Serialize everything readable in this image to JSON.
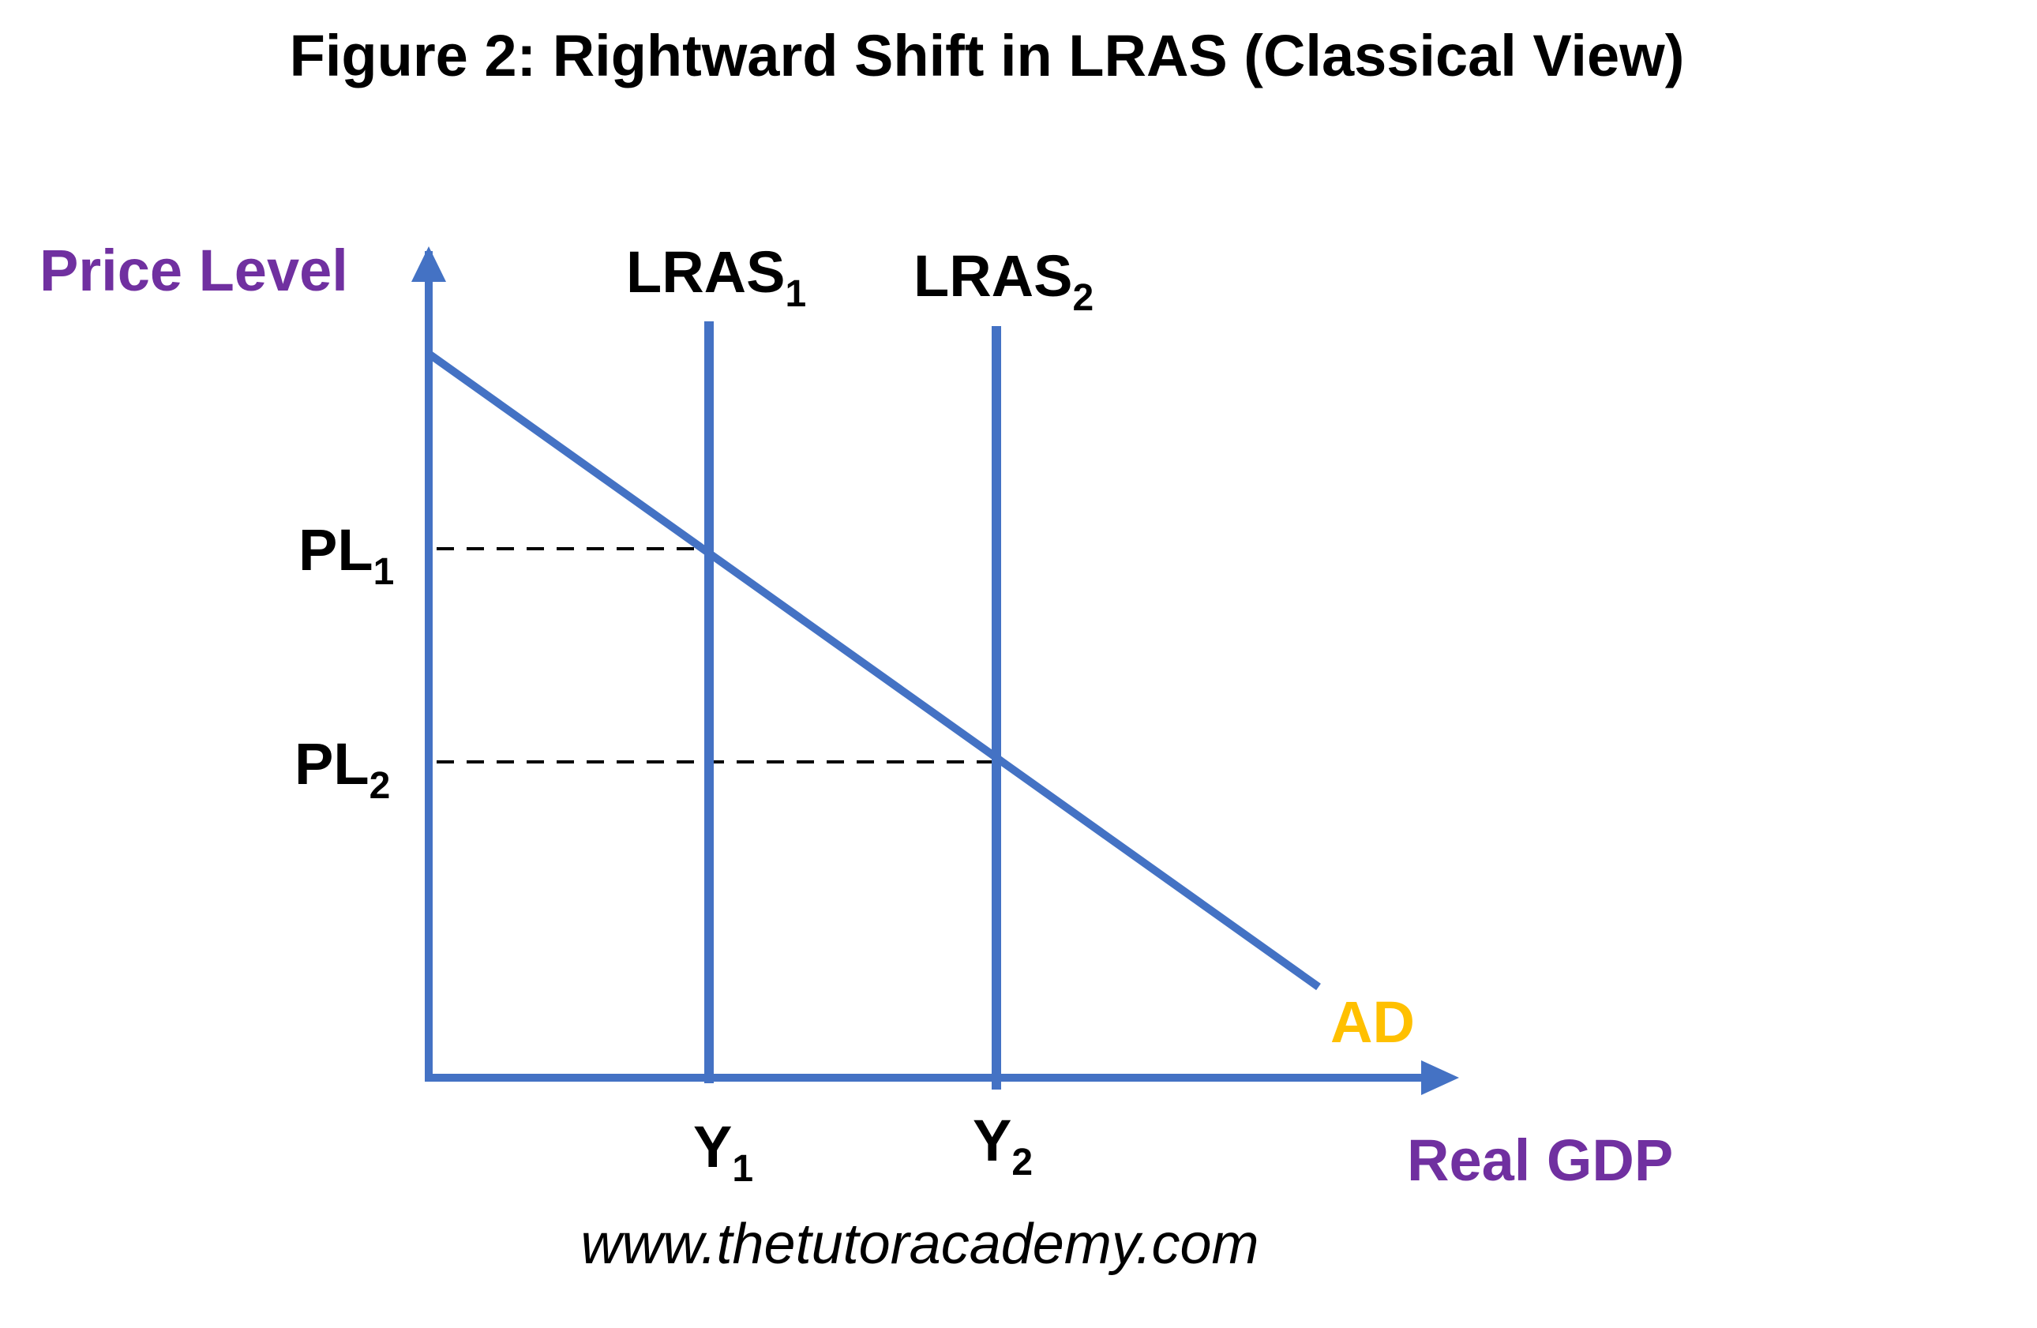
{
  "title": "Figure 2: Rightward Shift in LRAS (Classical View)",
  "website": "www.thetutoracademy.com",
  "colors": {
    "curve": "#4472C4",
    "axis_label": "#7030A0",
    "ad_label": "#FFC000",
    "text": "#000000"
  },
  "diagram": {
    "y_axis_label": "Price Level",
    "x_axis_label": "Real GDP",
    "curves": {
      "lras1": {
        "label": "LRAS",
        "subscript": "1"
      },
      "lras2": {
        "label": "LRAS",
        "subscript": "2"
      },
      "ad": {
        "label": "AD"
      }
    },
    "price_levels": [
      {
        "label": "PL",
        "subscript": "1"
      },
      {
        "label": "PL",
        "subscript": "2"
      }
    ],
    "outputs": [
      {
        "label": "Y",
        "subscript": "1"
      },
      {
        "label": "Y",
        "subscript": "2"
      }
    ]
  }
}
